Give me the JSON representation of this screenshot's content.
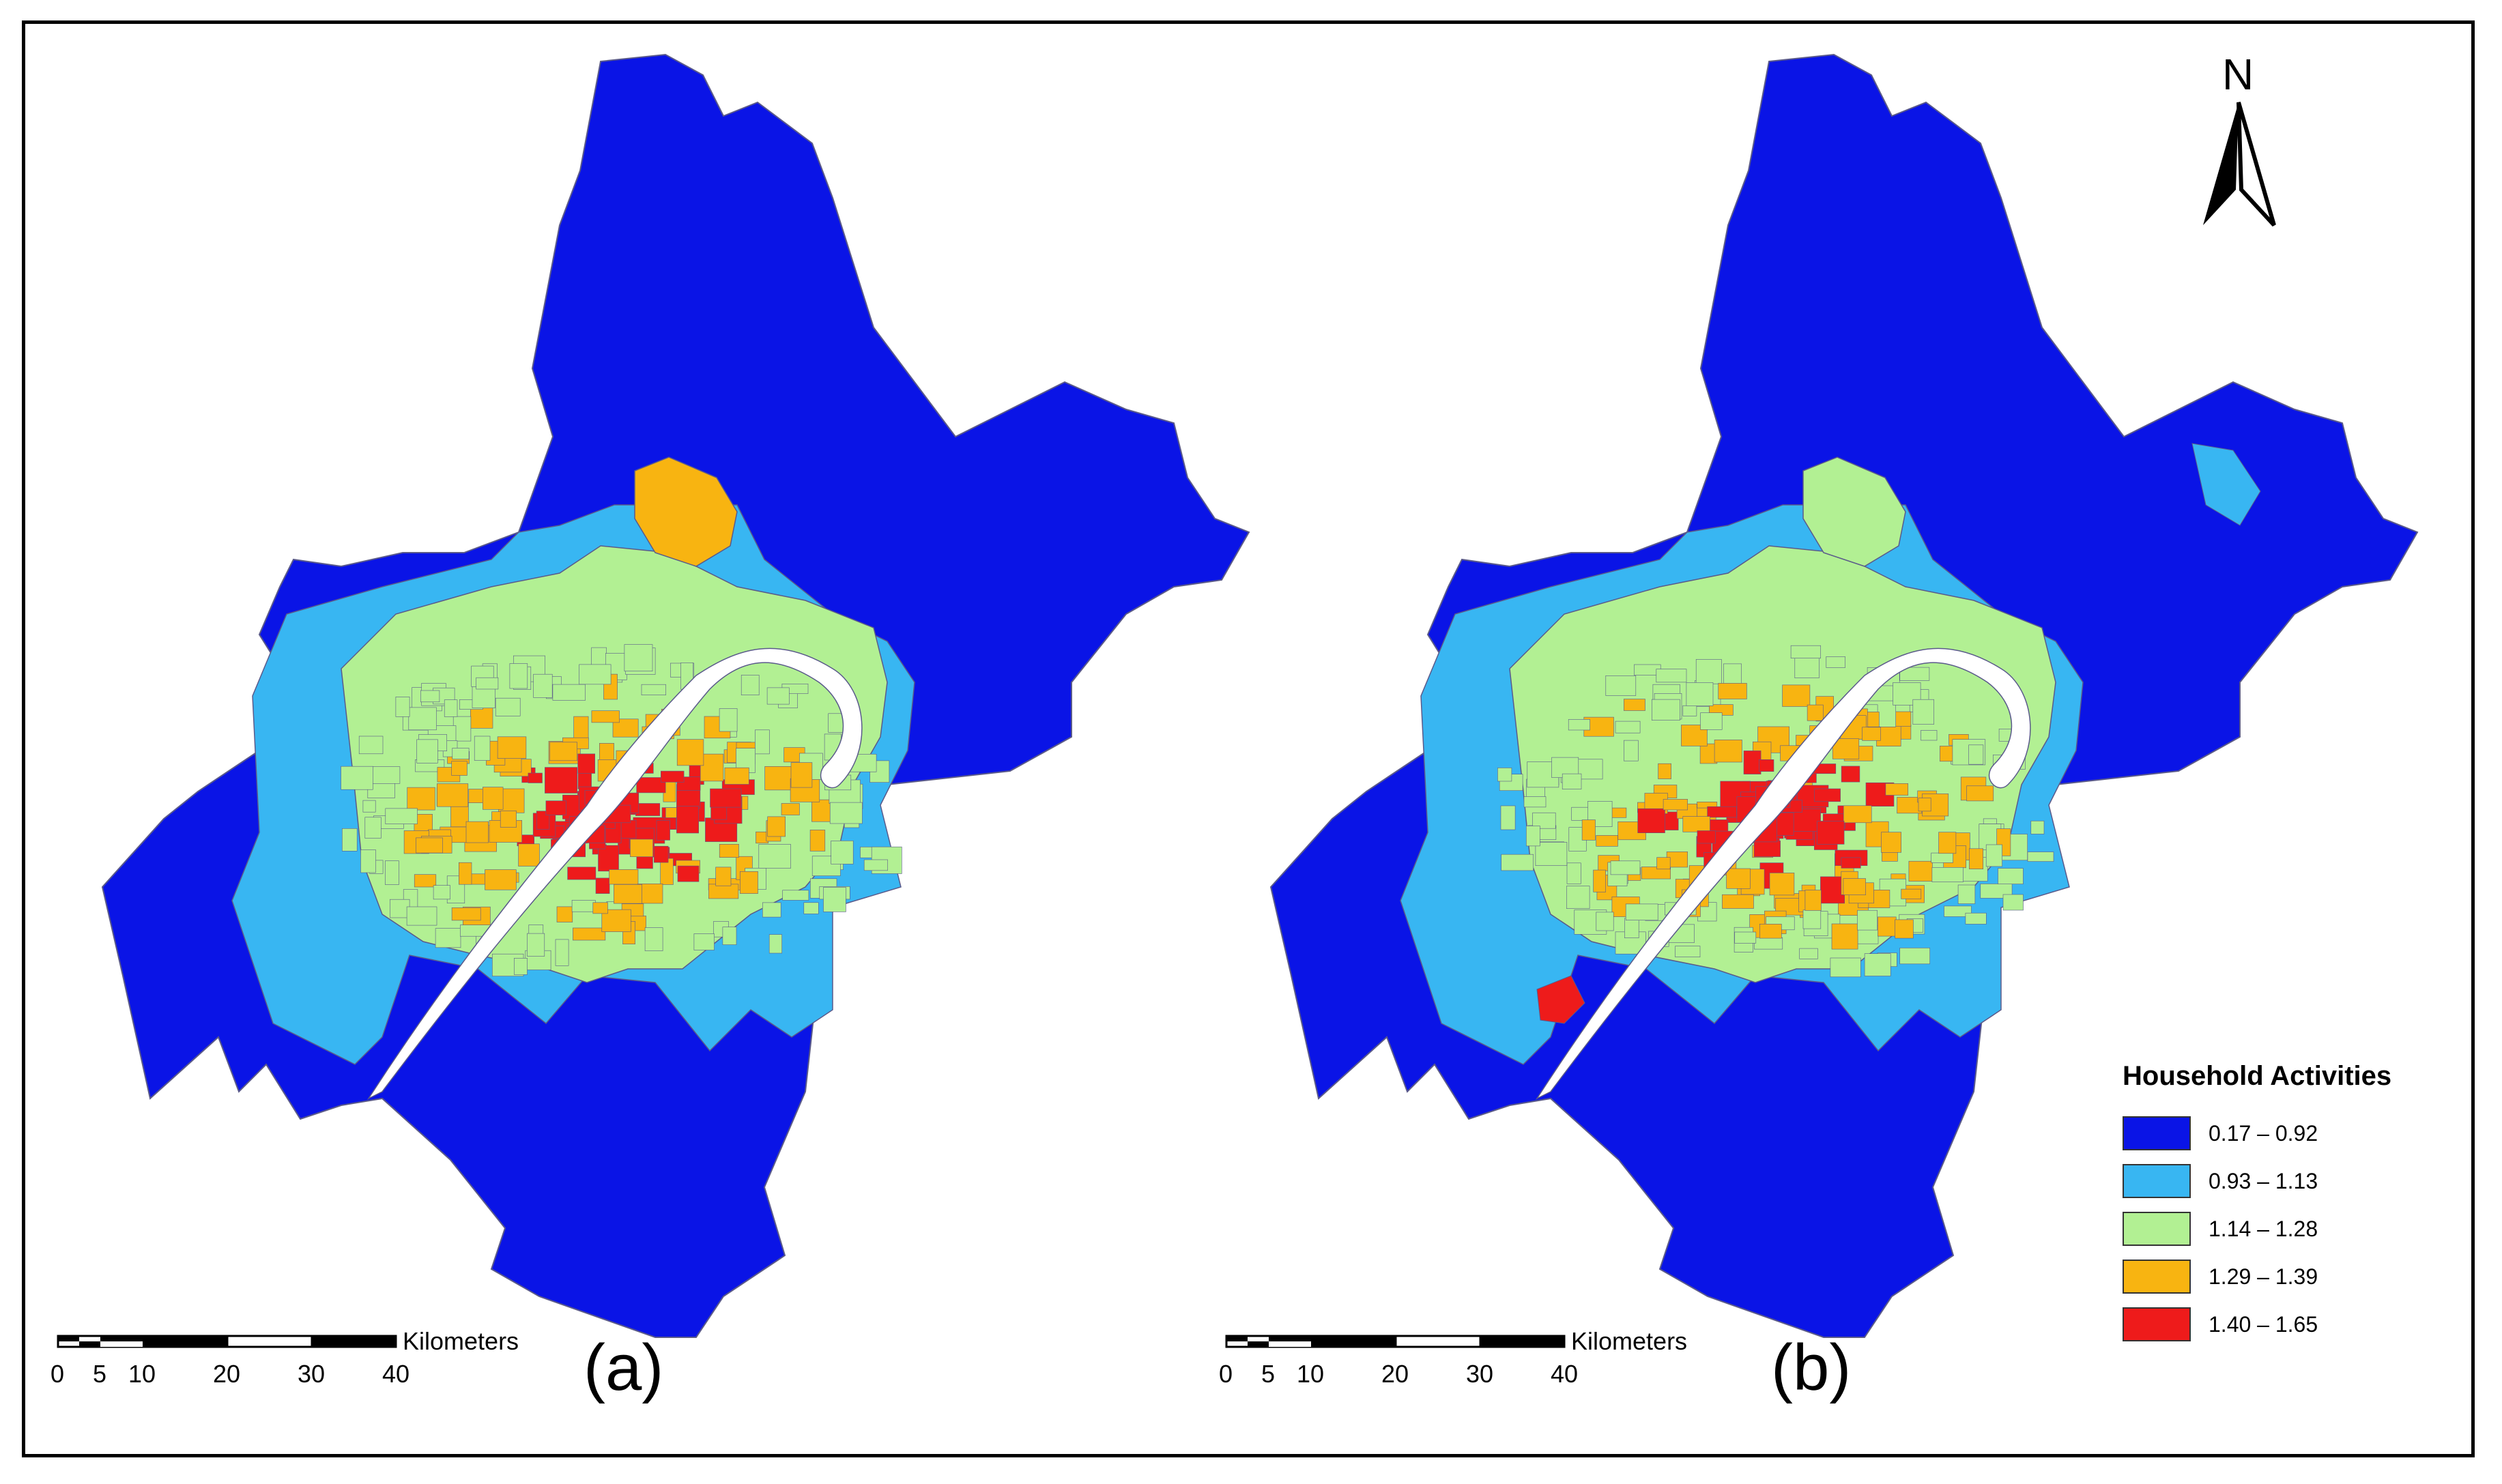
{
  "legend": {
    "title": "Household Activities",
    "classes": [
      {
        "label": "0.17 – 0.92",
        "color": "#0a14e6"
      },
      {
        "label": "0.93 – 1.13",
        "color": "#38b6f2"
      },
      {
        "label": "1.14 – 1.28",
        "color": "#b2f093"
      },
      {
        "label": "1.29 – 1.39",
        "color": "#f8b411"
      },
      {
        "label": "1.40 – 1.65",
        "color": "#ee1b1b"
      }
    ]
  },
  "panels": [
    {
      "label": "(a)"
    },
    {
      "label": "(b)"
    }
  ],
  "scale_bar": {
    "unit": "Kilometers",
    "ticks": [
      "0",
      "5",
      "10",
      "20",
      "30",
      "40"
    ]
  },
  "north_arrow": {
    "letter": "N"
  },
  "colors": {
    "river": "#ffffff",
    "boundary": "#5a5a8a",
    "frame": "#000000"
  }
}
